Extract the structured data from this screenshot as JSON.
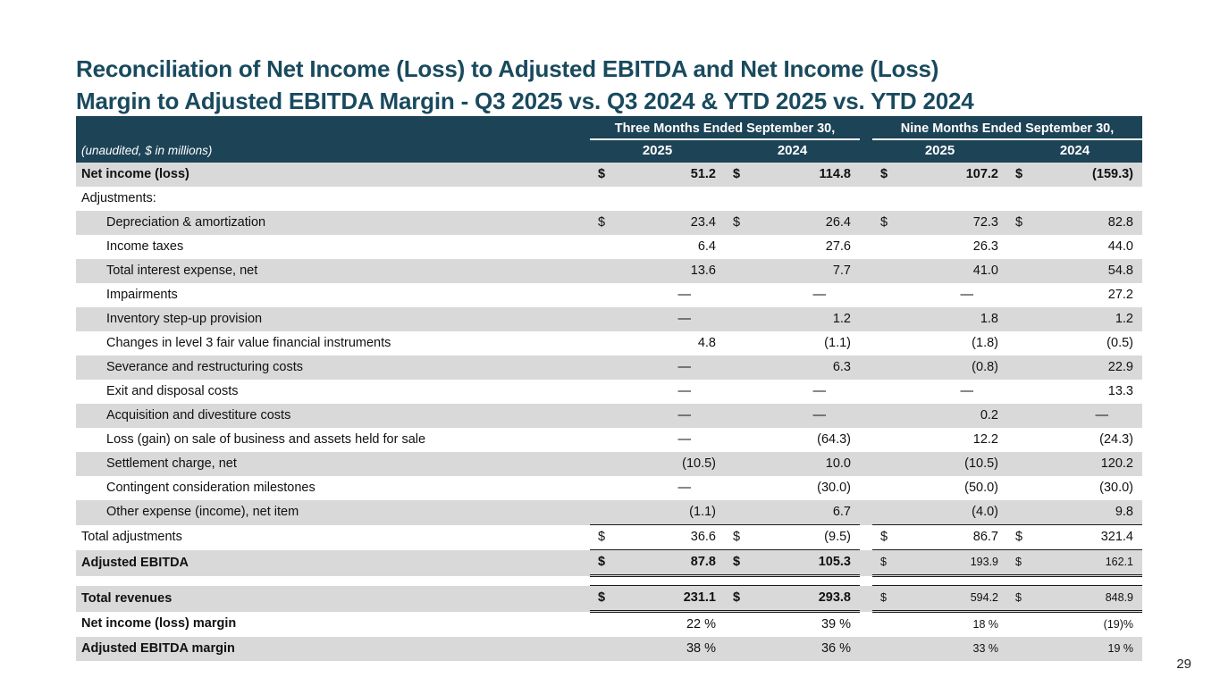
{
  "page": {
    "title_line1": "Reconciliation of Net Income (Loss) to Adjusted EBITDA and Net Income (Loss)",
    "title_line2": "Margin to Adjusted EBITDA Margin - Q3 2025 vs. Q3 2024 & YTD 2025 vs. YTD 2024",
    "page_number": "29"
  },
  "colors": {
    "title": "#194a5e",
    "header_bg": "#1d4356",
    "row_shade": "#d9d9d9"
  },
  "table": {
    "unaudited_note": "(unaudited, $ in millions)",
    "col_groups": [
      "Three Months Ended September 30,",
      "Nine Months Ended September 30,"
    ],
    "year_headers": [
      "2025",
      "2024",
      "2025",
      "2024"
    ],
    "rows": [
      {
        "label": "Net income (loss)",
        "bold": true,
        "values_bold": true,
        "shaded": true,
        "dollar": true,
        "values": [
          "51.2",
          "114.8",
          "107.2",
          "(159.3)"
        ]
      },
      {
        "label": "Adjustments:",
        "values": [
          "",
          "",
          "",
          ""
        ]
      },
      {
        "label": "Depreciation & amortization",
        "indent": true,
        "shaded": true,
        "dollar": true,
        "values": [
          "23.4",
          "26.4",
          "72.3",
          "82.8"
        ]
      },
      {
        "label": "Income taxes",
        "indent": true,
        "values": [
          "6.4",
          "27.6",
          "26.3",
          "44.0"
        ]
      },
      {
        "label": "Total interest expense, net",
        "indent": true,
        "shaded": true,
        "values": [
          "13.6",
          "7.7",
          "41.0",
          "54.8"
        ]
      },
      {
        "label": "Impairments",
        "indent": true,
        "values": [
          "—",
          "—",
          "—",
          "27.2"
        ]
      },
      {
        "label": "Inventory step-up provision",
        "indent": true,
        "shaded": true,
        "values": [
          "—",
          "1.2",
          "1.8",
          "1.2"
        ]
      },
      {
        "label": "Changes in level 3 fair value financial instruments",
        "indent": true,
        "values": [
          "4.8",
          "(1.1)",
          "(1.8)",
          "(0.5)"
        ]
      },
      {
        "label": "Severance and restructuring costs",
        "indent": true,
        "shaded": true,
        "values": [
          "—",
          "6.3",
          "(0.8)",
          "22.9"
        ]
      },
      {
        "label": "Exit and disposal costs",
        "indent": true,
        "values": [
          "—",
          "—",
          "—",
          "13.3"
        ]
      },
      {
        "label": "Acquisition and divestiture costs",
        "indent": true,
        "shaded": true,
        "values": [
          "—",
          "—",
          "0.2",
          "—"
        ]
      },
      {
        "label": "Loss (gain) on sale of business and assets held for sale",
        "indent": true,
        "values": [
          "—",
          "(64.3)",
          "12.2",
          "(24.3)"
        ]
      },
      {
        "label": "Settlement charge, net",
        "indent": true,
        "shaded": true,
        "values": [
          "(10.5)",
          "10.0",
          "(10.5)",
          "120.2"
        ]
      },
      {
        "label": "Contingent consideration milestones",
        "indent": true,
        "values": [
          "—",
          "(30.0)",
          "(50.0)",
          "(30.0)"
        ]
      },
      {
        "label": "Other expense (income), net item",
        "indent": true,
        "shaded": true,
        "values": [
          "(1.1)",
          "6.7",
          "(4.0)",
          "9.8"
        ]
      },
      {
        "label": "Total adjustments",
        "dollar": true,
        "rule_top": true,
        "values": [
          "36.6",
          "(9.5)",
          "86.7",
          "321.4"
        ]
      },
      {
        "label": "Adjusted EBITDA",
        "bold": true,
        "values_bold": true,
        "shaded": true,
        "dollar": true,
        "rule_top": true,
        "rule_bottom": "double",
        "small_tail": true,
        "values": [
          "87.8",
          "105.3",
          "193.9",
          "162.1"
        ]
      },
      {
        "label": "Total revenues",
        "bold": true,
        "values_bold": true,
        "shaded": true,
        "dollar": true,
        "rule_top": true,
        "rule_bottom": "double",
        "small_tail": true,
        "gap_before": true,
        "values": [
          "231.1",
          "293.8",
          "594.2",
          "848.9"
        ]
      },
      {
        "label": "Net income (loss) margin",
        "bold": true,
        "small_tail": true,
        "values": [
          "22 %",
          "39 %",
          "18 %",
          "(19)%"
        ]
      },
      {
        "label": "Adjusted EBITDA margin",
        "bold": true,
        "shaded": true,
        "small_tail": true,
        "values": [
          "38 %",
          "36 %",
          "33 %",
          "19 %"
        ]
      }
    ]
  }
}
